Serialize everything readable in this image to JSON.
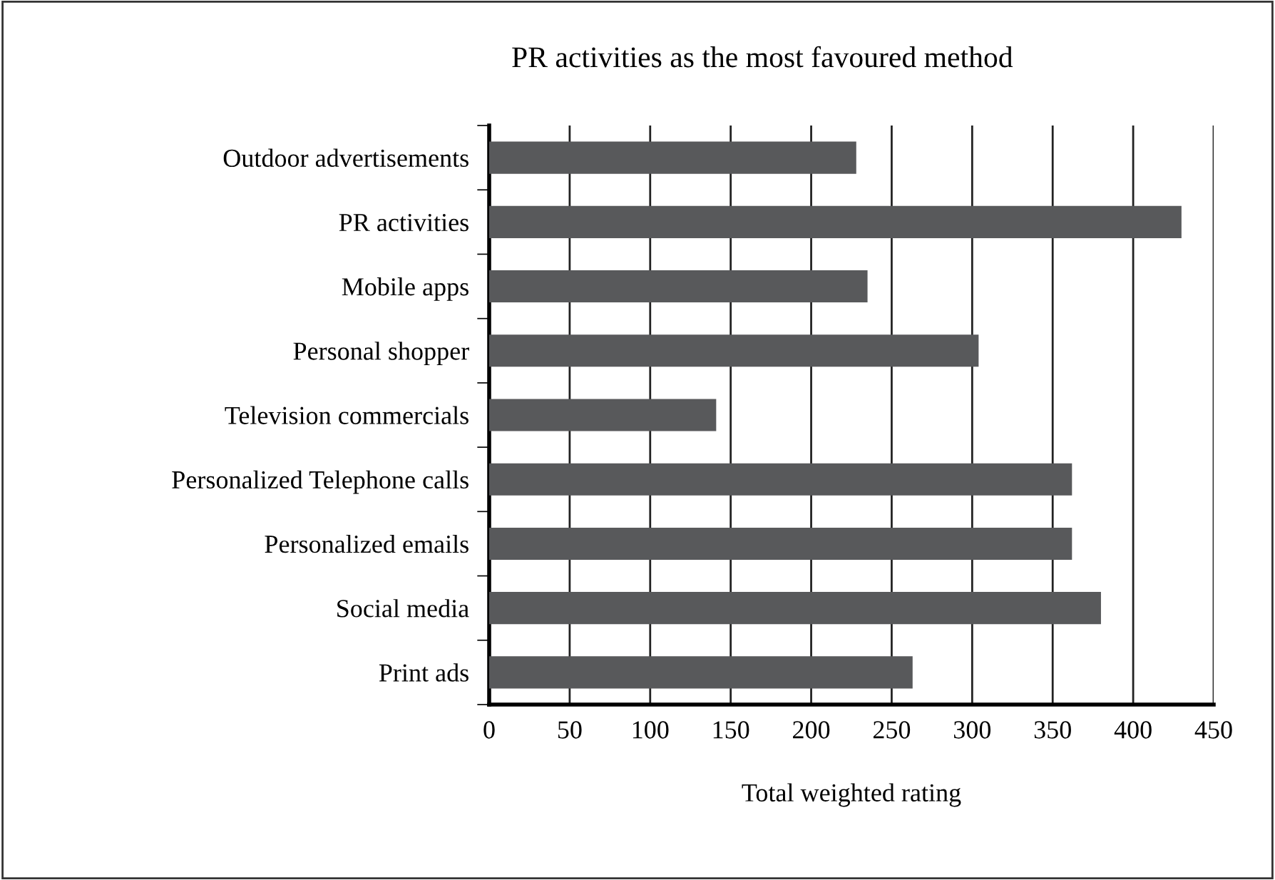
{
  "chart_data": {
    "type": "bar",
    "orientation": "horizontal",
    "title": "PR activities as the most favoured method",
    "xlabel": "Total weighted rating",
    "categories": [
      "Outdoor advertisements",
      "PR activities",
      "Mobile apps",
      "Personal shopper",
      "Television commercials",
      "Personalized Telephone calls",
      "Personalized emails",
      "Social media",
      "Print ads"
    ],
    "values": [
      228,
      430,
      235,
      304,
      141,
      362,
      362,
      380,
      263
    ],
    "color": "#58595b",
    "xlim": [
      0,
      450
    ],
    "xticks": [
      0,
      50,
      100,
      150,
      200,
      250,
      300,
      350,
      400,
      450
    ],
    "grid": "x"
  }
}
